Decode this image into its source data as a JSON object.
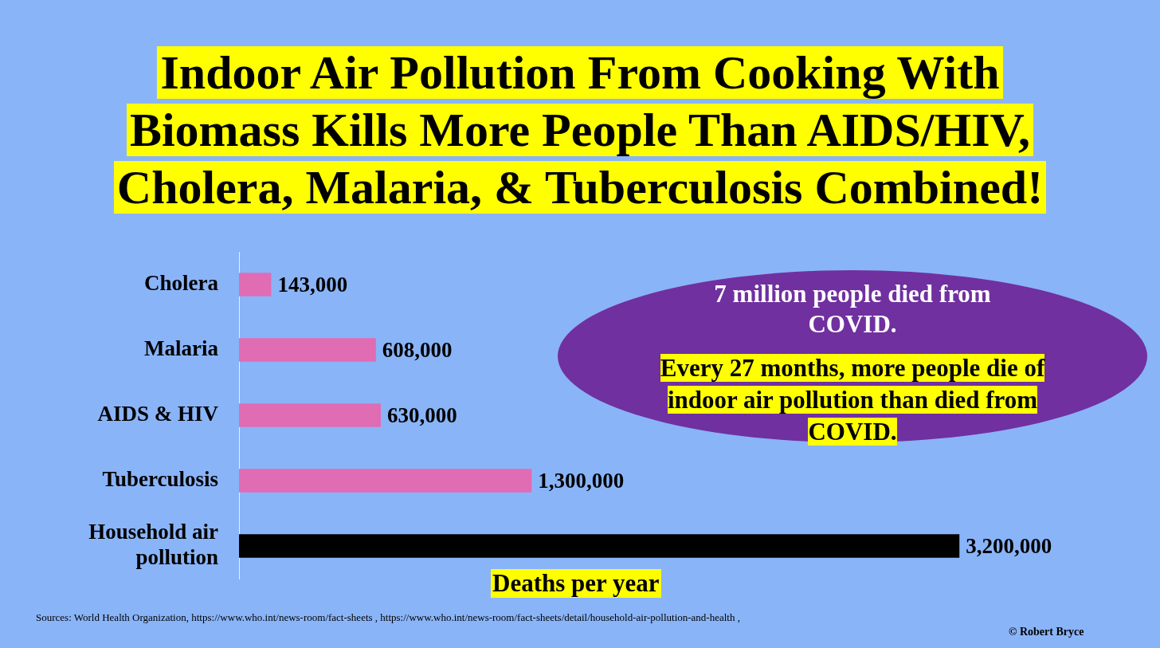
{
  "chart_data": {
    "type": "bar",
    "orientation": "horizontal",
    "title": "Indoor Air Pollution From Cooking With Biomass Kills More People Than AIDS/HIV, Cholera, Malaria, & Tuberculosis Combined!",
    "xlabel": "Deaths per year",
    "categories": [
      "Cholera",
      "Malaria",
      "AIDS & HIV",
      "Tuberculosis",
      "Household air pollution"
    ],
    "values": [
      143000,
      608000,
      630000,
      1300000,
      3200000
    ],
    "colors": [
      "#e06cb4",
      "#e06cb4",
      "#e06cb4",
      "#e06cb4",
      "#000000"
    ],
    "value_labels": [
      "143,000",
      "608,000",
      "630,000",
      "1,300,000",
      "3,200,000"
    ],
    "tick_labels": "y",
    "grid": false,
    "legend": false,
    "annotations": [
      "7 million people died from COVID.",
      "Every 27 months, more people die of indoor air pollution than died from COVID.",
      "Sources: World Health Organization, https://www.who.int/news-room/fact-sheets ,  https://www.who.int/news-room/fact-sheets/detail/household-air-pollution-and-health ,",
      "© Robert Bryce"
    ]
  }
}
